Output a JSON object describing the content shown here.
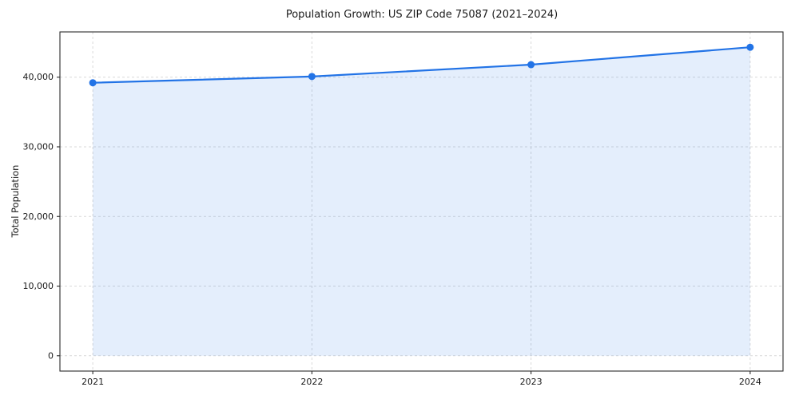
{
  "chart_data": {
    "type": "area",
    "title": "Population Growth: US ZIP Code 75087 (2021–2024)",
    "xlabel": "",
    "ylabel": "Total Population",
    "x": [
      2021,
      2022,
      2023,
      2024
    ],
    "series": [
      {
        "name": "Total Population",
        "values": [
          39200,
          40100,
          41800,
          44300
        ]
      }
    ],
    "xticks": [
      2021,
      2022,
      2023,
      2024
    ],
    "xtick_labels": [
      "2021",
      "2022",
      "2023",
      "2024"
    ],
    "yticks": [
      0,
      10000,
      20000,
      30000,
      40000
    ],
    "ytick_labels": [
      "0",
      "10,000",
      "20,000",
      "30,000",
      "40,000"
    ],
    "xlim": [
      2020.85,
      2024.15
    ],
    "ylim": [
      -2200,
      46500
    ],
    "grid": true,
    "legend": "none",
    "line_color": "#2273e6",
    "fill_opacity": 0.12,
    "grid_color": "#d9d9d9",
    "spine_color": "#2b2b2b",
    "text_color": "#1a1a1a"
  }
}
